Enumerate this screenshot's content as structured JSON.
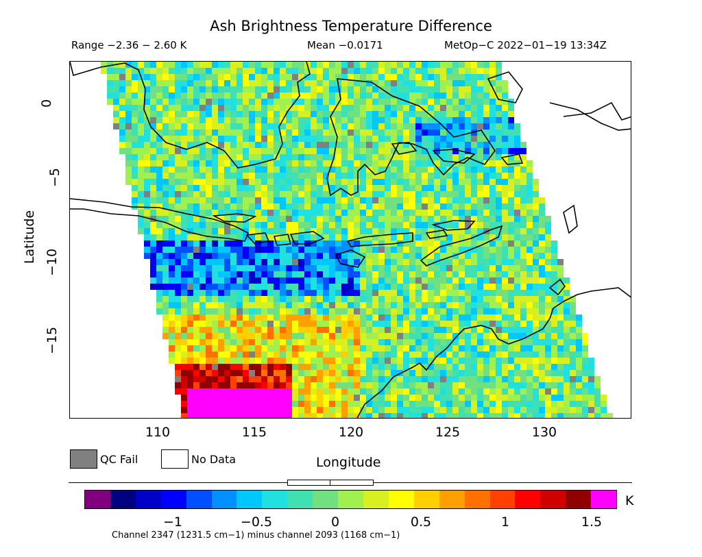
{
  "header": {
    "title": "Ash Brightness Temperature Difference",
    "range": "Range −2.36 − 2.60 K",
    "mean": "Mean −0.0171",
    "satellite": "MetOp−C 2022−01−19 13:34Z"
  },
  "map": {
    "xlabel": "Longitude",
    "ylabel": "Latitude",
    "xlim": [
      105.5,
      134.5
    ],
    "ylim": [
      -19.5,
      2.7
    ],
    "xticks": [
      "110",
      "115",
      "120",
      "125",
      "130"
    ],
    "yticks": [
      "0",
      "−5",
      "−10",
      "−15"
    ],
    "no_data_color": "#ffffff",
    "qc_fail_color": "#808080",
    "coastline_color": "#000000"
  },
  "legend": {
    "qc_fail": "QC Fail",
    "no_data": "No Data"
  },
  "colorbar": {
    "unit": "K",
    "ticks": [
      "−1",
      "−0.5",
      "0",
      "0.5",
      "1",
      "1.5"
    ],
    "colors": [
      "#800080",
      "#000080",
      "#0000c8",
      "#0000ff",
      "#0050ff",
      "#0090ff",
      "#00c8ff",
      "#20e0e0",
      "#40e0b0",
      "#70e080",
      "#a0f050",
      "#d8f020",
      "#ffff00",
      "#ffd000",
      "#ffa000",
      "#ff7000",
      "#ff4000",
      "#ff0000",
      "#d00000",
      "#900000",
      "#ff00ff"
    ],
    "caption": "Channel 2347 (1231.5 cm−1) minus channel 2093 (1168 cm−1)"
  }
}
